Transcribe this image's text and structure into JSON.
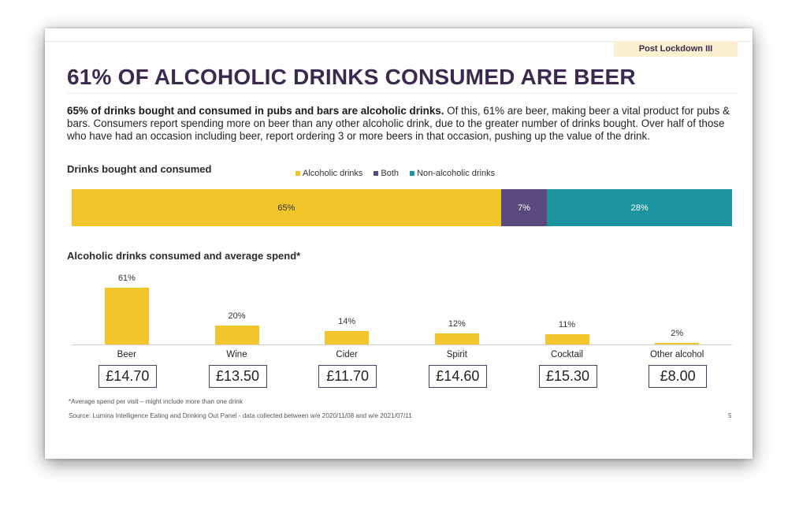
{
  "slide": {
    "tag": "Post Lockdown III",
    "title": "61% OF ALCOHOLIC DRINKS CONSUMED ARE BEER",
    "intro_bold": "65% of drinks bought and consumed in pubs and bars are alcoholic drinks.",
    "intro_rest": " Of this, 61% are beer, making beer a vital product for pubs & bars. Consumers report spending more on beer than any other alcoholic drink, due to the greater number of drinks bought. Over half of those who have had an occasion including beer, report ordering 3 or more beers in that occasion, pushing up the value of the drink.",
    "footnote": "*Average spend per visit – might include more than one drink",
    "source": "Source: Lumina Intelligence Eating and Drinking Out Panel - data collected between w/e 2020/11/08 and w/e 2021/07/11",
    "page_number": "5"
  },
  "chart_data": [
    {
      "type": "bar",
      "orientation": "horizontal-stacked",
      "title": "Drinks bought and consumed",
      "categories": [
        "Drinks bought and consumed"
      ],
      "series": [
        {
          "name": "Alcoholic drinks",
          "values": [
            65
          ],
          "label": "65%",
          "color": "#f2c52a"
        },
        {
          "name": "Both",
          "values": [
            7
          ],
          "label": "7%",
          "color": "#5b4a7e"
        },
        {
          "name": "Non-alcoholic drinks",
          "values": [
            28
          ],
          "label": "28%",
          "color": "#1b94a0"
        }
      ],
      "legend": "top"
    },
    {
      "type": "bar",
      "title": "Alcoholic drinks consumed and average spend*",
      "categories": [
        "Beer",
        "Wine",
        "Cider",
        "Spirit",
        "Cocktail",
        "Other alcohol"
      ],
      "values": [
        61,
        20,
        14,
        12,
        11,
        2
      ],
      "value_labels": [
        "61%",
        "20%",
        "14%",
        "12%",
        "11%",
        "2%"
      ],
      "average_spend": [
        "£14.70",
        "£13.50",
        "£11.70",
        "£14.60",
        "£15.30",
        "£8.00"
      ],
      "ylim": [
        0,
        61
      ],
      "color": "#f2c52a",
      "grid": false
    }
  ]
}
